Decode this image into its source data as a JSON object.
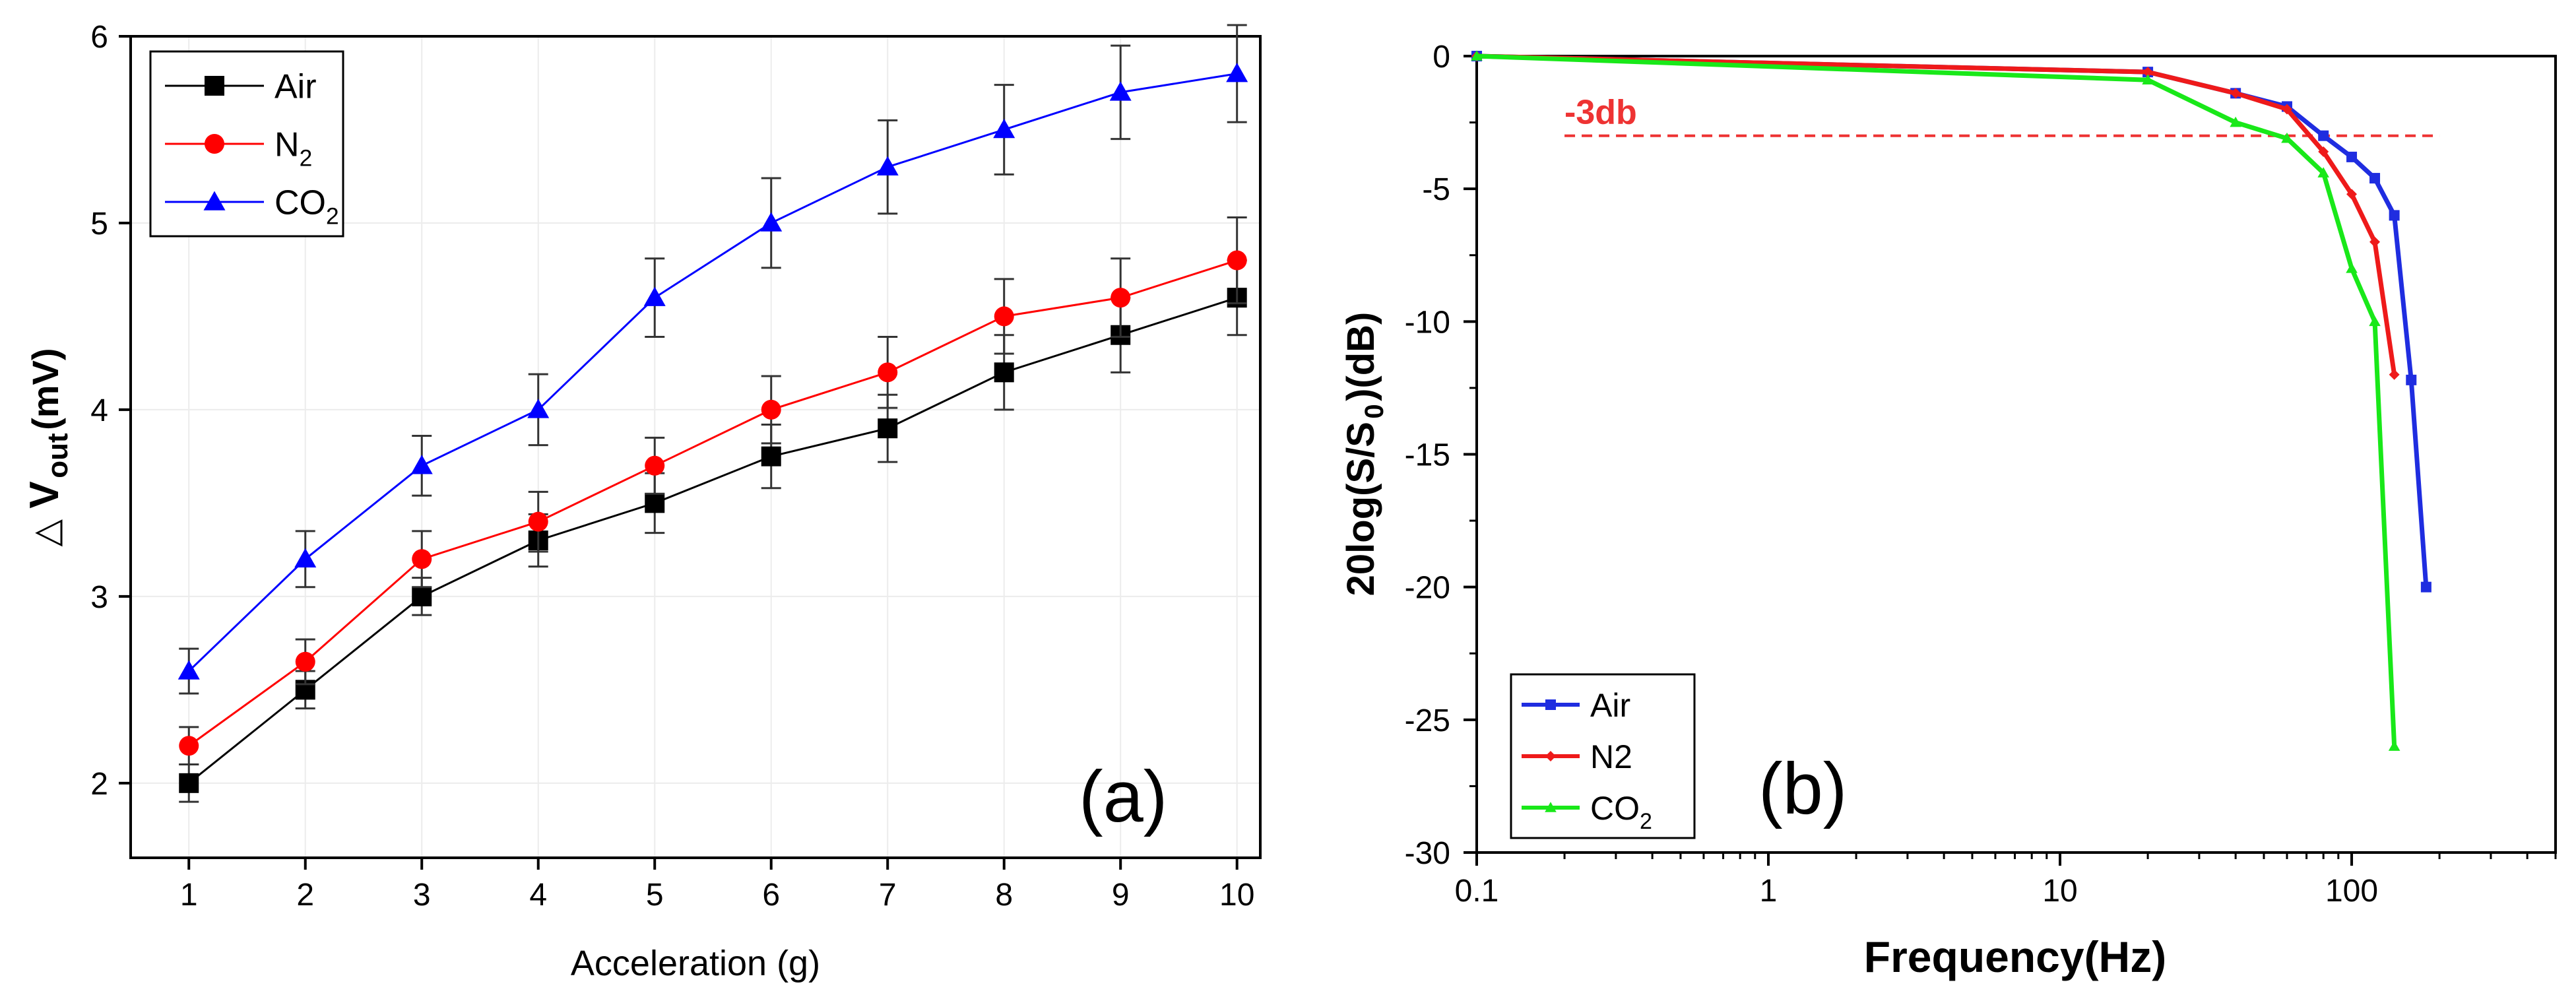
{
  "colors": {
    "air_left": "#000000",
    "n2": "#ff0000",
    "co2_left": "#0000ff",
    "air_right": "#1f2de0",
    "n2_right": "#ee1a1a",
    "co2_right": "#19e819",
    "threshold": "#ee3333",
    "grid": "#ececec"
  },
  "chart_data": [
    {
      "id": "a",
      "type": "line",
      "panel_label": "(a)",
      "title": "",
      "xlabel": "Acceleration (g)",
      "ylabel": {
        "symbol": "△",
        "main": "V",
        "sub": "out",
        "unit": " (mV)"
      },
      "xlim": [
        0.5,
        10.2
      ],
      "ylim": [
        1.6,
        6.0
      ],
      "xticks": [
        1,
        2,
        3,
        4,
        5,
        6,
        7,
        8,
        9,
        10
      ],
      "yticks": [
        2,
        3,
        4,
        5,
        6
      ],
      "grid": true,
      "legend_position": "top-left",
      "x": [
        1,
        2,
        3,
        4,
        5,
        6,
        7,
        8,
        9,
        10
      ],
      "series": [
        {
          "name": "Air",
          "sub": "",
          "marker": "square",
          "color": "#000000",
          "values": [
            2.0,
            2.5,
            3.0,
            3.3,
            3.5,
            3.75,
            3.9,
            4.2,
            4.4,
            4.6
          ],
          "errors": [
            0.1,
            0.1,
            0.1,
            0.14,
            0.16,
            0.17,
            0.18,
            0.2,
            0.2,
            0.2
          ]
        },
        {
          "name": "N",
          "sub": "2",
          "marker": "circle",
          "color": "#ff0000",
          "values": [
            2.2,
            2.65,
            3.2,
            3.4,
            3.7,
            4.0,
            4.2,
            4.5,
            4.6,
            4.8
          ],
          "errors": [
            0.1,
            0.12,
            0.15,
            0.16,
            0.15,
            0.18,
            0.19,
            0.2,
            0.21,
            0.23
          ]
        },
        {
          "name": "CO",
          "sub": "2",
          "marker": "triangle",
          "color": "#0000ff",
          "values": [
            2.6,
            3.2,
            3.7,
            4.0,
            4.6,
            5.0,
            5.3,
            5.5,
            5.7,
            5.8
          ],
          "errors": [
            0.12,
            0.15,
            0.16,
            0.19,
            0.21,
            0.24,
            0.25,
            0.24,
            0.25,
            0.26
          ]
        }
      ]
    },
    {
      "id": "b",
      "type": "line",
      "panel_label": "(b)",
      "title": "",
      "xlabel": "Frequency(Hz)",
      "ylabel": {
        "main": "20log(S/S",
        "sub": "0",
        "end": ")(dB)"
      },
      "xscale": "log",
      "xlim": [
        0.1,
        500
      ],
      "ylim": [
        -30,
        0
      ],
      "xticks": [
        0.1,
        1,
        10,
        100
      ],
      "xtick_labels": [
        "0.1",
        "1",
        "10",
        "100"
      ],
      "yticks": [
        0,
        -5,
        -10,
        -15,
        -20,
        -25,
        -30
      ],
      "grid": false,
      "legend_position": "bottom-left",
      "threshold": {
        "value": -3,
        "label": "-3db"
      },
      "series": [
        {
          "name": "Air",
          "sub": "",
          "marker": "square",
          "color": "#1f2de0",
          "x": [
            0.1,
            20,
            40,
            60,
            80,
            100,
            120,
            140,
            160,
            180
          ],
          "values": [
            0,
            -0.6,
            -1.4,
            -1.9,
            -3.0,
            -3.8,
            -4.6,
            -6.0,
            -12.2,
            -20.0
          ]
        },
        {
          "name": "N2",
          "sub": "",
          "marker": "diamond",
          "color": "#ee1a1a",
          "x": [
            0.1,
            20,
            40,
            60,
            80,
            100,
            120,
            140
          ],
          "values": [
            0,
            -0.6,
            -1.4,
            -2.0,
            -3.6,
            -5.2,
            -7.0,
            -12.0
          ]
        },
        {
          "name": "CO",
          "sub": "2",
          "marker": "triangle",
          "color": "#19e819",
          "x": [
            0.1,
            20,
            40,
            60,
            80,
            100,
            120,
            140
          ],
          "values": [
            0,
            -0.9,
            -2.5,
            -3.1,
            -4.4,
            -8.0,
            -10.0,
            -26.0
          ]
        }
      ]
    }
  ]
}
